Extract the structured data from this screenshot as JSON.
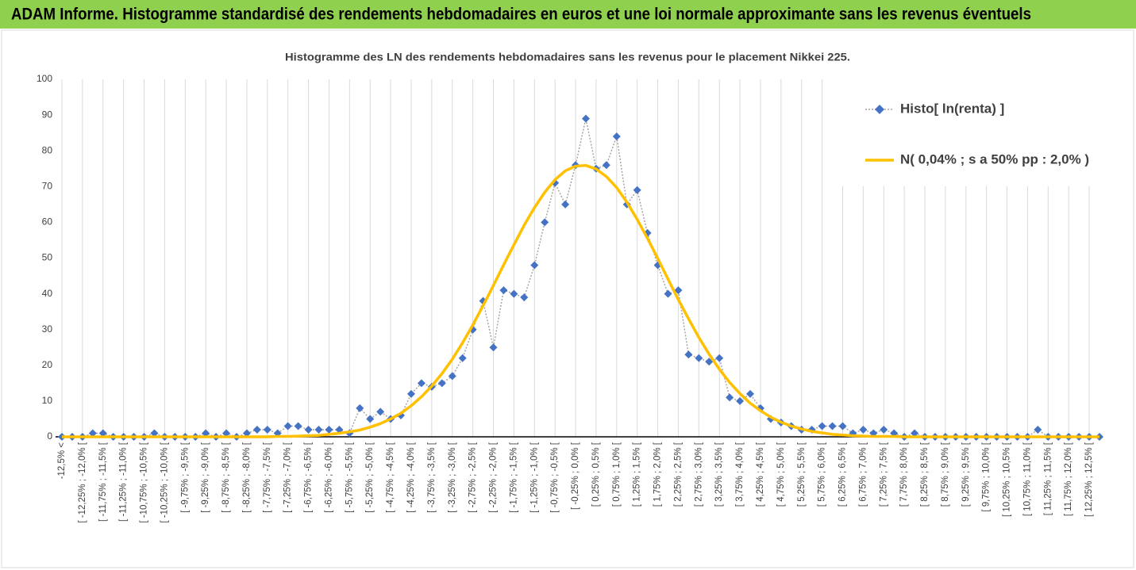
{
  "header": {
    "title": "ADAM Informe. Histogramme standardisé des rendements hebdomadaires en euros et une loi normale approximante sans les revenus éventuels"
  },
  "chart_data": {
    "type": "line",
    "title": "Histogramme des LN des rendements hebdomadaires sans les revenus pour le placement Nikkei 225.",
    "categories": [
      "-12,5% <",
      null,
      "[ -12,25% ; -12,0% [",
      null,
      "[ -11,75% ; -11,5% [",
      null,
      "[ -11,25% ; -11,0% [",
      null,
      "[ -10,75% ; -10,5% [",
      null,
      "[ -10,25% ; -10,0% [",
      null,
      "[ -9,75% ; -9,5% [",
      null,
      "[ -9,25% ; -9,0% [",
      null,
      "[ -8,75% ; -8,5% [",
      null,
      "[ -8,25% ; -8,0% [",
      null,
      "[ -7,75% ; -7,5% [",
      null,
      "[ -7,25% ; -7,0% [",
      null,
      "[ -6,75% ; -6,5% [",
      null,
      "[ -6,25% ; -6,0% [",
      null,
      "[ -5,75% ; -5,5% [",
      null,
      "[ -5,25% ; -5,0% [",
      null,
      "[ -4,75% ; -4,5% [",
      null,
      "[ -4,25% ; -4,0% [",
      null,
      "[ -3,75% ; -3,5% [",
      null,
      "[ -3,25% ; -3,0% [",
      null,
      "[ -2,75% ; -2,5% [",
      null,
      "[ -2,25% ; -2,0% [",
      null,
      "[ -1,75% ; -1,5% [",
      null,
      "[ -1,25% ; -1,0% [",
      null,
      "[ -0,75% ; -0,5% [",
      null,
      "[ -0,25% ; 0,0% [",
      null,
      "[ 0,25% ; 0,5% [",
      null,
      "[ 0,75% ; 1,0% [",
      null,
      "[ 1,25% ; 1,5% [",
      null,
      "[ 1,75% ; 2,0% [",
      null,
      "[ 2,25% ; 2,5% [",
      null,
      "[ 2,75% ; 3,0% [",
      null,
      "[ 3,25% ; 3,5% [",
      null,
      "[ 3,75% ; 4,0% [",
      null,
      "[ 4,25% ; 4,5% [",
      null,
      "[ 4,75% ; 5,0% [",
      null,
      "[ 5,25% ; 5,5% [",
      null,
      "[ 5,75% ; 6,0% [",
      null,
      "[ 6,25% ; 6,5% [",
      null,
      "[ 6,75% ; 7,0% [",
      null,
      "[ 7,25% ; 7,5% [",
      null,
      "[ 7,75% ; 8,0% [",
      null,
      "[ 8,25% ; 8,5% [",
      null,
      "[ 8,75% ; 9,0% [",
      null,
      "[ 9,25% ; 9,5% [",
      null,
      "[ 9,75% ; 10,0% [",
      null,
      "[ 10,25% ; 10,5% [",
      null,
      "[ 10,75% ; 11,0% [",
      null,
      "[ 11,25% ; 11,5% [",
      null,
      "[ 11,75% ; 12,0% [",
      null,
      "[ 12,25% ; 12,5% [",
      null
    ],
    "series": [
      {
        "name": "Histo[ ln(renta) ]",
        "color": "#4472c4",
        "line_color": "#a5a5a5",
        "marker": "diamond",
        "line_style": "dotted",
        "values": [
          0,
          0,
          0,
          1,
          1,
          0,
          0,
          0,
          0,
          1,
          0,
          0,
          0,
          0,
          1,
          0,
          1,
          0,
          1,
          2,
          2,
          1,
          3,
          3,
          2,
          2,
          2,
          2,
          1,
          8,
          5,
          7,
          5,
          6,
          12,
          15,
          14,
          15,
          17,
          22,
          30,
          38,
          25,
          41,
          40,
          39,
          48,
          60,
          71,
          65,
          76,
          89,
          75,
          76,
          84,
          65,
          69,
          57,
          48,
          40,
          41,
          23,
          22,
          21,
          22,
          11,
          10,
          12,
          8,
          5,
          4,
          3,
          2,
          2,
          3,
          3,
          3,
          1,
          2,
          1,
          2,
          1,
          0,
          1,
          0,
          0,
          0,
          0,
          0,
          0,
          0,
          0,
          0,
          0,
          0,
          2,
          0,
          0,
          0,
          0,
          0,
          0
        ]
      },
      {
        "name": "N( 0,04% ; s a 50% pp : 2,0% )",
        "color": "#ffc000",
        "line_style": "solid",
        "values": [
          0,
          0,
          0,
          0,
          0,
          0,
          0,
          0,
          0,
          0,
          0,
          0,
          0,
          0,
          0,
          0,
          0,
          0,
          0,
          0,
          0,
          0.1,
          0.1,
          0.2,
          0.3,
          0.4,
          0.7,
          1,
          1.4,
          1.9,
          2.7,
          3.7,
          5,
          6.6,
          8.7,
          11.2,
          14.2,
          17.7,
          21.7,
          26.3,
          31.3,
          36.7,
          42.3,
          48.1,
          53.7,
          59.2,
          64.1,
          68.4,
          71.9,
          74.4,
          75.7,
          75.9,
          74.9,
          72.8,
          69.7,
          65.6,
          60.8,
          55.5,
          49.9,
          44.1,
          38.4,
          33,
          27.8,
          23.1,
          18.9,
          15.2,
          12.1,
          9.4,
          7.3,
          5.5,
          4.1,
          3,
          2.2,
          1.5,
          1.1,
          0.7,
          0.5,
          0.3,
          0.2,
          0.1,
          0.1,
          0.1,
          0,
          0,
          0,
          0,
          0,
          0,
          0,
          0,
          0,
          0,
          0,
          0,
          0,
          0,
          0,
          0,
          0,
          0,
          0,
          0
        ]
      }
    ],
    "ylim": [
      0,
      100
    ],
    "yticks": [
      0,
      10,
      20,
      30,
      40,
      50,
      60,
      70,
      80,
      90,
      100
    ],
    "grid": true,
    "legend": "top-right"
  }
}
